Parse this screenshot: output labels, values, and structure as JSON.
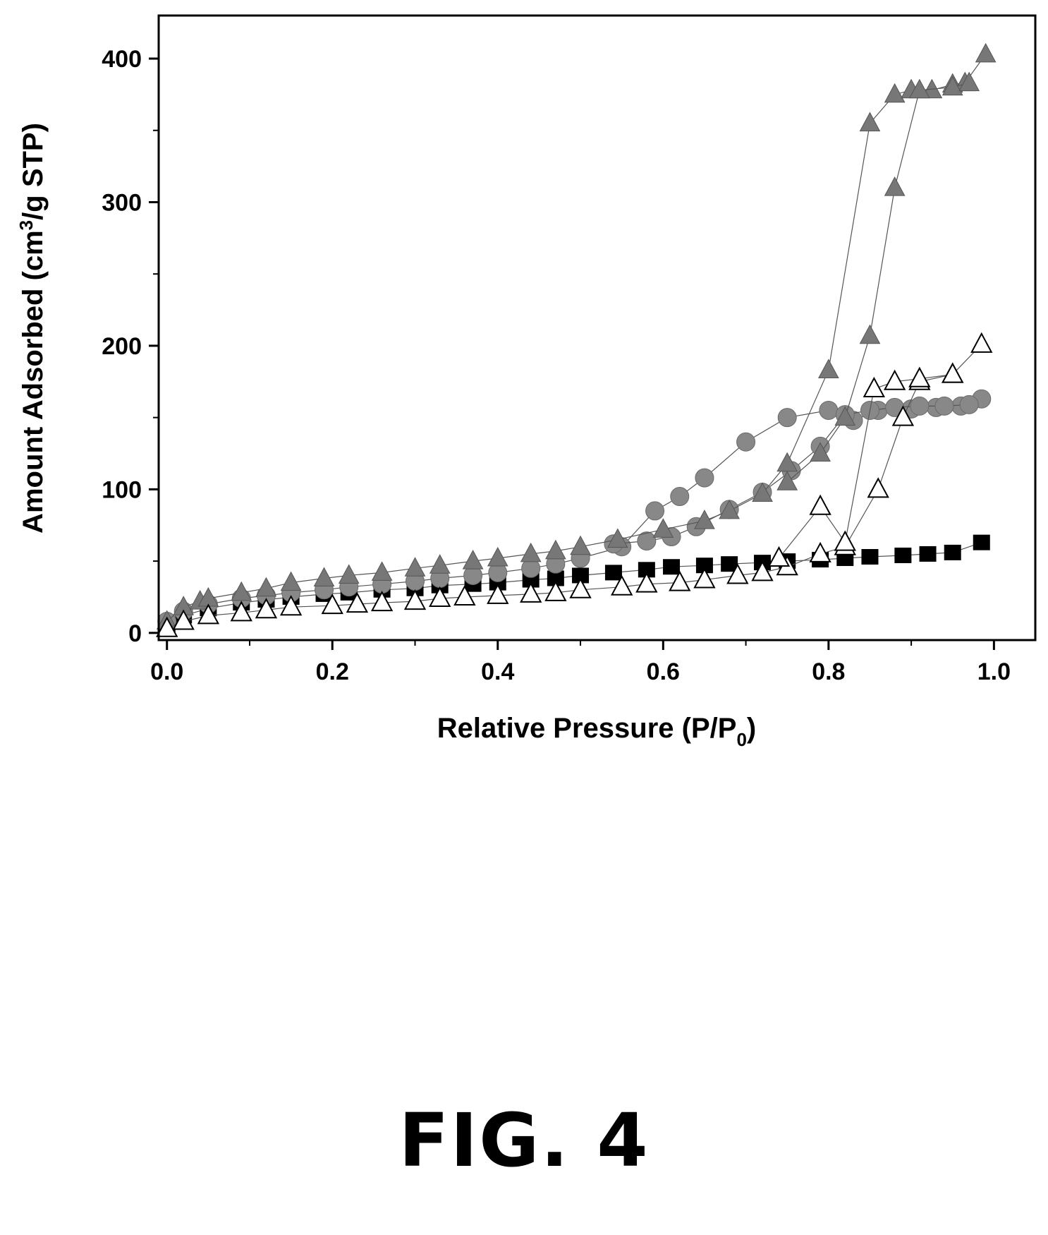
{
  "figure": {
    "caption": "FIG. 4"
  },
  "chart_data": {
    "type": "scatter",
    "title": "",
    "xlabel": "Relative Pressure (P/P",
    "xlabel_sub": "0",
    "xlabel_suffix": ")",
    "ylabel": "Amount Adsorbed (cm",
    "ylabel_sup": "3",
    "ylabel_suffix": "/g STP)",
    "xlim": [
      -0.01,
      1.05
    ],
    "ylim": [
      -5,
      430
    ],
    "xticks": [
      0.0,
      0.2,
      0.4,
      0.6,
      0.8,
      1.0
    ],
    "xtick_labels": [
      "0.0",
      "0.2",
      "0.4",
      "0.6",
      "0.8",
      "1.0"
    ],
    "yticks": [
      0,
      100,
      200,
      300,
      400
    ],
    "ytick_labels": [
      "0",
      "100",
      "200",
      "300",
      "400"
    ],
    "grid": false,
    "legend": "none",
    "series": [
      {
        "marker": "square",
        "color": "#000000",
        "x": [
          0.0,
          0.02,
          0.05,
          0.09,
          0.12,
          0.15,
          0.19,
          0.22,
          0.26,
          0.3,
          0.33,
          0.37,
          0.4,
          0.44,
          0.47,
          0.5,
          0.54,
          0.58,
          0.61,
          0.65,
          0.68,
          0.72,
          0.75,
          0.79,
          0.82,
          0.85,
          0.89,
          0.92,
          0.95,
          0.985
        ],
        "y": [
          5,
          12,
          17,
          21,
          23,
          25,
          27,
          28,
          30,
          31,
          33,
          34,
          35,
          37,
          38,
          40,
          42,
          44,
          46,
          47,
          48,
          49,
          50,
          51,
          52,
          53,
          54,
          55,
          56,
          63
        ]
      },
      {
        "marker": "circle",
        "color": "#888888",
        "x": [
          0.0,
          0.02,
          0.05,
          0.09,
          0.12,
          0.15,
          0.19,
          0.22,
          0.26,
          0.3,
          0.33,
          0.37,
          0.4,
          0.44,
          0.47,
          0.5,
          0.55,
          0.59,
          0.62,
          0.65,
          0.7,
          0.75,
          0.8,
          0.83,
          0.86,
          0.9,
          0.93,
          0.96,
          0.985
        ],
        "y": [
          8,
          15,
          20,
          24,
          26,
          28,
          30,
          32,
          34,
          36,
          38,
          40,
          42,
          45,
          48,
          52,
          60,
          85,
          95,
          108,
          133,
          150,
          155,
          148,
          155,
          156,
          157,
          158,
          163
        ]
      },
      {
        "marker": "circle-desorption",
        "color": "#888888",
        "x": [
          0.54,
          0.58,
          0.61,
          0.64,
          0.68,
          0.72,
          0.755,
          0.79,
          0.82,
          0.85,
          0.88,
          0.91,
          0.94,
          0.97
        ],
        "y": [
          62,
          64,
          67,
          74,
          86,
          98,
          113,
          130,
          152,
          155,
          157,
          158,
          158,
          159
        ]
      },
      {
        "marker": "triangle",
        "color": "#777777",
        "x": [
          0.0,
          0.02,
          0.04,
          0.05,
          0.09,
          0.12,
          0.15,
          0.19,
          0.22,
          0.26,
          0.3,
          0.33,
          0.37,
          0.4,
          0.44,
          0.47,
          0.5,
          0.545,
          0.6,
          0.65,
          0.68,
          0.72,
          0.75,
          0.8,
          0.85,
          0.88,
          0.9,
          0.925,
          0.95,
          0.965,
          0.99
        ],
        "y": [
          8,
          18,
          22,
          24,
          28,
          31,
          35,
          38,
          40,
          42,
          45,
          47,
          50,
          52,
          55,
          57,
          60,
          65,
          72,
          78,
          85,
          97,
          118,
          183,
          355,
          375,
          378,
          378,
          382,
          383,
          403
        ]
      },
      {
        "marker": "triangle-desorption",
        "color": "#777777",
        "x": [
          0.75,
          0.79,
          0.82,
          0.85,
          0.88,
          0.91,
          0.95,
          0.97
        ],
        "y": [
          105,
          125,
          150,
          207,
          310,
          378,
          380,
          383
        ]
      },
      {
        "marker": "triangle-open",
        "color": "#000000",
        "x": [
          0.0,
          0.02,
          0.05,
          0.09,
          0.12,
          0.15,
          0.2,
          0.23,
          0.26,
          0.3,
          0.33,
          0.36,
          0.4,
          0.44,
          0.47,
          0.5,
          0.55,
          0.58,
          0.62,
          0.65,
          0.69,
          0.72,
          0.75,
          0.79,
          0.82,
          0.86,
          0.89,
          0.91,
          0.95,
          0.985
        ],
        "y": [
          3,
          8,
          12,
          14,
          16,
          18,
          19,
          20,
          21,
          22,
          24,
          25,
          26,
          27,
          28,
          30,
          32,
          34,
          35,
          37,
          40,
          42,
          46,
          55,
          60,
          100,
          150,
          175,
          180,
          201
        ]
      },
      {
        "marker": "triangle-open-desorption",
        "color": "#000000",
        "x": [
          0.74,
          0.79,
          0.82,
          0.855,
          0.88,
          0.91,
          0.95
        ],
        "y": [
          52,
          88,
          63,
          170,
          175,
          177,
          180
        ]
      }
    ]
  }
}
